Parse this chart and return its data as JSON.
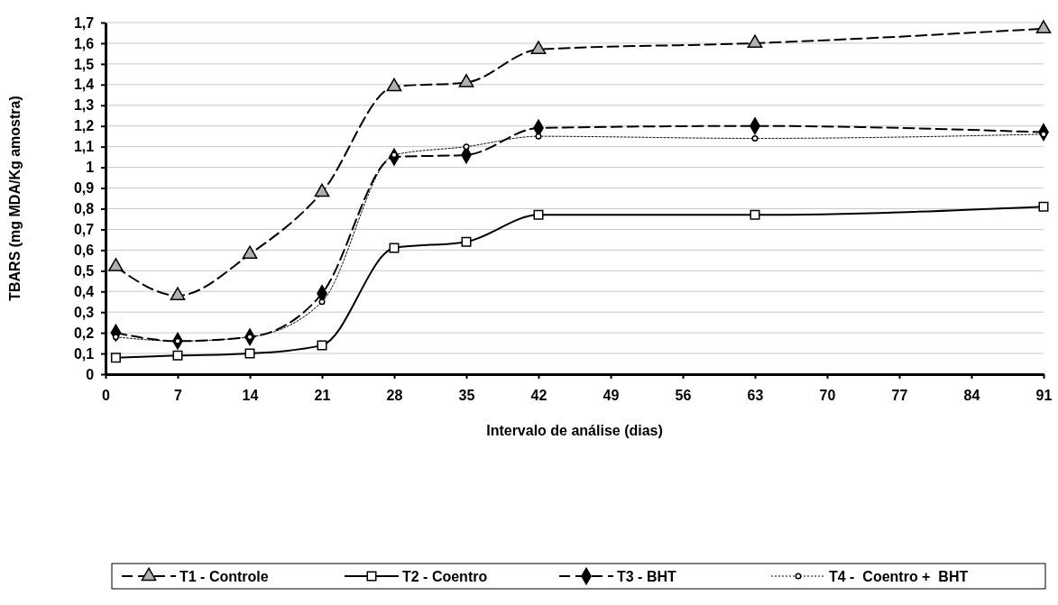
{
  "chart_data": {
    "type": "line",
    "xlabel": "Intervalo de análise (dias)",
    "ylabel": "TBARS (mg MDA/Kg amostra)",
    "xlim": [
      0,
      91
    ],
    "xticks": [
      0,
      7,
      14,
      21,
      28,
      35,
      42,
      49,
      56,
      63,
      70,
      77,
      84,
      91
    ],
    "ylim": [
      0,
      1.7
    ],
    "yticks": [
      0,
      {
        "value": 0.1,
        "label": "0,1"
      },
      {
        "value": 0.2,
        "label": "0,2"
      },
      {
        "value": 0.3,
        "label": "0,3"
      },
      {
        "value": 0.4,
        "label": "0,4"
      },
      {
        "value": 0.5,
        "label": "0,5"
      },
      {
        "value": 0.6,
        "label": "0,6"
      },
      {
        "value": 0.7,
        "label": "0,7"
      },
      {
        "value": 0.8,
        "label": "0,8"
      },
      {
        "value": 0.9,
        "label": "0,9"
      },
      1,
      {
        "value": 1.1,
        "label": "1,1"
      },
      {
        "value": 1.2,
        "label": "1,2"
      },
      {
        "value": 1.3,
        "label": "1,3"
      },
      {
        "value": 1.4,
        "label": "1,4"
      },
      {
        "value": 1.5,
        "label": "1,5"
      },
      {
        "value": 1.6,
        "label": "1,6"
      },
      {
        "value": 1.7,
        "label": "1,7"
      }
    ],
    "x": [
      1,
      7,
      14,
      21,
      28,
      35,
      42,
      63,
      91
    ],
    "grid": "y",
    "legend": "bottom",
    "series": [
      {
        "name": "T1 - Controle",
        "color": "#000000",
        "marker": "triangle",
        "line_style": "dashed",
        "values": [
          0.52,
          0.38,
          0.58,
          0.88,
          1.39,
          1.41,
          1.57,
          1.6,
          1.67
        ]
      },
      {
        "name": "T2 - Coentro",
        "color": "#000000",
        "marker": "square",
        "line_style": "solid",
        "values": [
          0.08,
          0.09,
          0.1,
          0.14,
          0.61,
          0.64,
          0.77,
          0.77,
          0.81
        ]
      },
      {
        "name": "T3 - BHT",
        "color": "#000000",
        "marker": "diamond",
        "line_style": "dashed",
        "values": [
          0.2,
          0.16,
          0.18,
          0.39,
          1.05,
          1.06,
          1.19,
          1.2,
          1.17
        ]
      },
      {
        "name": "T4 -  Coentro +  BHT",
        "color": "#000000",
        "marker": "circle",
        "line_style": "dotted",
        "values": [
          0.18,
          0.16,
          0.18,
          0.35,
          1.06,
          1.1,
          1.15,
          1.14,
          1.16
        ]
      }
    ]
  }
}
